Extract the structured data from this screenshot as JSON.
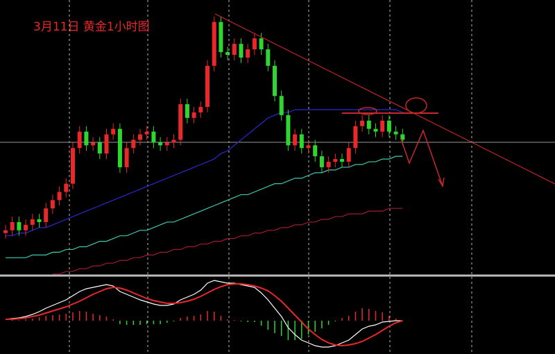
{
  "chart_data": [
    {
      "type": "candlestick",
      "title": "3月11日  黄金1小时图",
      "ylim": [
        0,
        100
      ],
      "up_color": "#e8282a",
      "down_color": "#2fd62f",
      "open": [
        15,
        16,
        19,
        16,
        18,
        20,
        19,
        24,
        27,
        30,
        33,
        46,
        52,
        47,
        48,
        44,
        51,
        53,
        39,
        46,
        49,
        51,
        52,
        48,
        47,
        48,
        49,
        62,
        57,
        59,
        61,
        76,
        92,
        81,
        80,
        84,
        79,
        82,
        86,
        82,
        76,
        65,
        58,
        47,
        51,
        46,
        47,
        43,
        39,
        41,
        42,
        41,
        46,
        54,
        56,
        53,
        52,
        56,
        52,
        51
      ],
      "high": [
        18,
        21,
        21,
        20,
        22,
        22,
        26,
        29,
        32,
        35,
        48,
        54,
        54,
        50,
        50,
        53,
        55,
        55,
        48,
        51,
        53,
        54,
        54,
        50,
        50,
        51,
        64,
        64,
        61,
        63,
        78,
        94,
        94,
        83,
        86,
        86,
        84,
        88,
        88,
        84,
        78,
        67,
        60,
        53,
        53,
        49,
        49,
        45,
        43,
        44,
        44,
        48,
        56,
        58,
        58,
        55,
        58,
        58,
        54,
        53
      ],
      "low": [
        13,
        14,
        14,
        14,
        16,
        17,
        17,
        22,
        25,
        28,
        31,
        44,
        45,
        45,
        42,
        42,
        49,
        37,
        37,
        44,
        47,
        49,
        46,
        45,
        45,
        46,
        47,
        55,
        55,
        57,
        59,
        74,
        79,
        78,
        78,
        77,
        77,
        80,
        80,
        74,
        63,
        56,
        45,
        45,
        44,
        44,
        41,
        37,
        37,
        39,
        39,
        39,
        44,
        52,
        51,
        50,
        50,
        50,
        49,
        47
      ],
      "close": [
        16,
        19,
        16,
        18,
        20,
        19,
        24,
        27,
        30,
        33,
        46,
        52,
        47,
        48,
        44,
        51,
        53,
        39,
        46,
        49,
        51,
        52,
        48,
        47,
        48,
        49,
        62,
        57,
        59,
        61,
        76,
        92,
        81,
        80,
        84,
        79,
        82,
        86,
        82,
        76,
        65,
        58,
        47,
        51,
        46,
        47,
        43,
        39,
        41,
        42,
        41,
        46,
        54,
        56,
        53,
        52,
        56,
        52,
        51,
        49
      ],
      "series": [
        {
          "color": "#3fc9b0",
          "values": [
            6,
            6,
            6,
            6,
            7,
            7,
            7,
            8,
            8,
            9,
            9,
            10,
            10,
            11,
            12,
            12,
            13,
            14,
            14,
            15,
            16,
            16,
            17,
            18,
            19,
            19,
            20,
            21,
            22,
            23,
            24,
            25,
            26,
            27,
            28,
            29,
            29,
            30,
            31,
            32,
            33,
            33,
            34,
            35,
            35,
            36,
            37,
            37,
            38,
            38,
            39,
            39,
            40,
            40,
            41,
            41,
            42,
            42,
            43,
            43
          ]
        },
        {
          "color": "#2a2ad0",
          "values": [
            14,
            14,
            15,
            15,
            16,
            17,
            17,
            18,
            19,
            20,
            21,
            22,
            23,
            24,
            25,
            26,
            27,
            28,
            29,
            30,
            31,
            32,
            33,
            34,
            35,
            36,
            37,
            38,
            39,
            40,
            41,
            42,
            44,
            45,
            47,
            49,
            51,
            53,
            55,
            57,
            58,
            59,
            59,
            60,
            60,
            60,
            60,
            60,
            60,
            60,
            60,
            60,
            60,
            60,
            60,
            60,
            60,
            60,
            60,
            59
          ]
        },
        {
          "color": "#a01a3a",
          "values": [
            null,
            null,
            null,
            null,
            null,
            null,
            null,
            0,
            0,
            1,
            1,
            2,
            2,
            3,
            3,
            4,
            4,
            5,
            5,
            6,
            6,
            7,
            7,
            8,
            8,
            9,
            9,
            10,
            10,
            11,
            11,
            12,
            12,
            13,
            13,
            14,
            14,
            15,
            15,
            16,
            16,
            17,
            17,
            18,
            18,
            19,
            19,
            20,
            20,
            21,
            21,
            22,
            22,
            22,
            23,
            23,
            23,
            24,
            24,
            24
          ]
        }
      ]
    },
    {
      "type": "macd",
      "ylim": [
        -43,
        62
      ],
      "up_color": "#e8282a",
      "down_color": "#2fd62f",
      "series": [
        {
          "color": "#ffffff",
          "values": [
            2,
            3,
            4,
            6,
            9,
            13,
            18,
            22,
            26,
            30,
            36,
            42,
            46,
            48,
            50,
            52,
            50,
            42,
            38,
            34,
            30,
            27,
            24,
            22,
            22,
            24,
            30,
            34,
            38,
            44,
            54,
            58,
            56,
            54,
            54,
            52,
            50,
            48,
            40,
            30,
            18,
            6,
            -10,
            -20,
            -28,
            -32,
            -36,
            -38,
            -38,
            -36,
            -32,
            -28,
            -20,
            -12,
            -8,
            -6,
            -2,
            -1,
            0,
            0
          ]
        },
        {
          "color": "#e8282a",
          "values": [
            2,
            2,
            3,
            4,
            6,
            8,
            11,
            14,
            17,
            20,
            24,
            28,
            33,
            38,
            42,
            46,
            48,
            47,
            44,
            40,
            36,
            32,
            29,
            27,
            25,
            25,
            26,
            28,
            31,
            35,
            40,
            45,
            49,
            52,
            53,
            53,
            52,
            50,
            47,
            43,
            36,
            28,
            18,
            8,
            -2,
            -12,
            -20,
            -27,
            -32,
            -35,
            -36,
            -35,
            -33,
            -30,
            -25,
            -20,
            -14,
            -8,
            -3,
            0
          ]
        }
      ],
      "histogram": [
        0,
        1,
        1,
        2,
        3,
        5,
        7,
        8,
        9,
        10,
        12,
        14,
        13,
        10,
        8,
        6,
        2,
        -5,
        -6,
        -6,
        -6,
        -5,
        -5,
        -5,
        -3,
        -1,
        4,
        6,
        7,
        9,
        14,
        13,
        7,
        2,
        1,
        -1,
        -2,
        -2,
        -7,
        -13,
        -18,
        -22,
        -28,
        -28,
        -26,
        -20,
        -16,
        -11,
        -6,
        -1,
        4,
        7,
        13,
        18,
        17,
        14,
        12,
        7,
        3,
        0
      ]
    }
  ]
}
